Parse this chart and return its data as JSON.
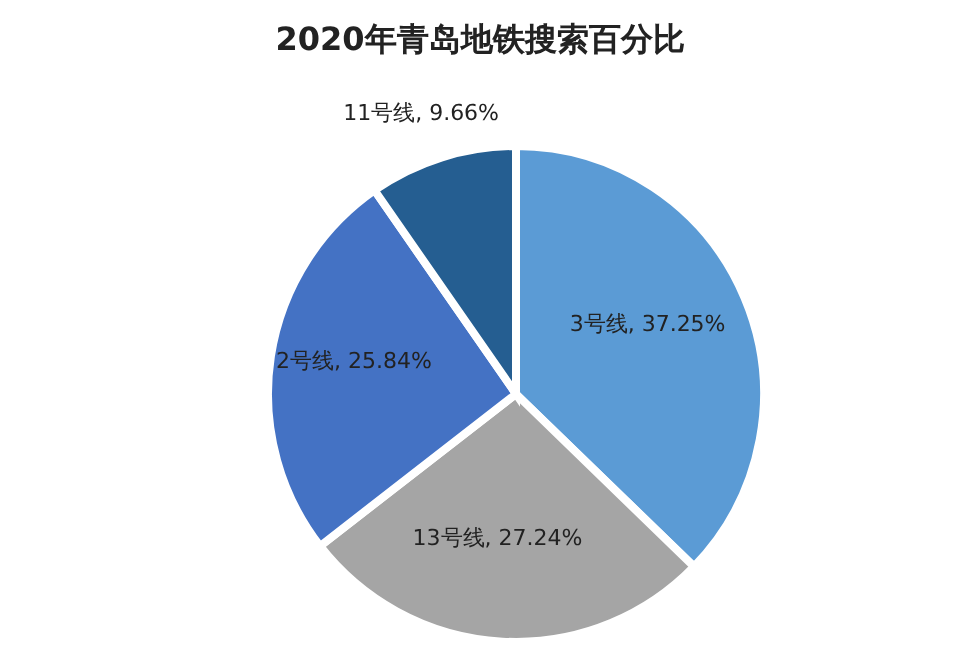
{
  "chart_data": {
    "type": "pie",
    "title": "2020年青岛地铁搜索百分比",
    "categories": [
      "3号线",
      "13号线",
      "2号线",
      "11号线"
    ],
    "values": [
      37.25,
      27.24,
      25.84,
      9.66
    ],
    "colors": [
      "#5b9bd5",
      "#a5a5a5",
      "#4472c4",
      "#255e91"
    ],
    "value_labels": [
      "37.25%",
      "27.24%",
      "25.84%",
      "9.66%"
    ],
    "legend": false
  }
}
